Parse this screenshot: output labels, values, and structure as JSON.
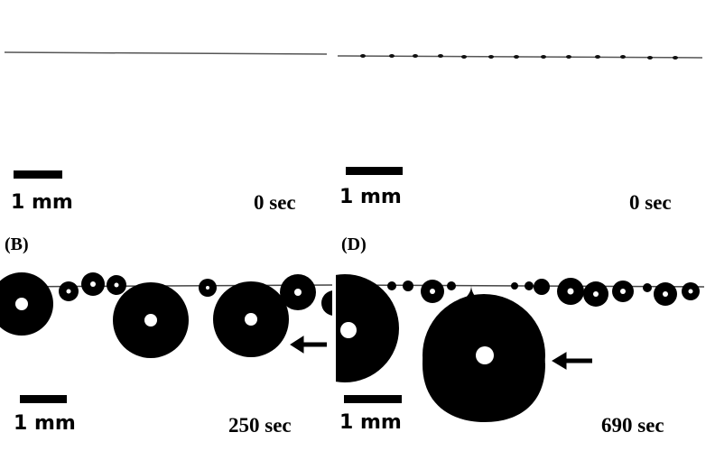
{
  "figure": {
    "panels": [
      {
        "id": "top-left",
        "letter": "",
        "scale_label": "1 mm",
        "time_label": "0 sec"
      },
      {
        "id": "top-right",
        "letter": "",
        "scale_label": "1 mm",
        "time_label": "0 sec"
      },
      {
        "id": "bottom-left",
        "letter": "(B)",
        "scale_label": "1 mm",
        "time_label": "250 sec"
      },
      {
        "id": "bottom-right",
        "letter": "(D)",
        "scale_label": "1 mm",
        "time_label": "690 sec"
      }
    ]
  },
  "colors": {
    "background": "#ffffff",
    "droplet": "#000000",
    "fiber": "#555555"
  }
}
